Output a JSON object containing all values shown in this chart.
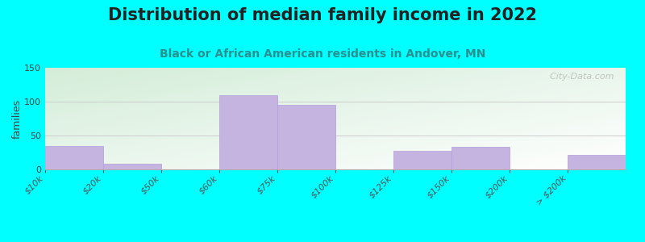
{
  "title": "Distribution of median family income in 2022",
  "subtitle": "Black or African American residents in Andover, MN",
  "ylabel": "families",
  "background_color": "#00FFFF",
  "bar_color": "#c5b3e0",
  "bar_edge_color": "#b39ddb",
  "categories": [
    "$10k",
    "$20k",
    "$50k",
    "$60k",
    "$75k",
    "$100k",
    "$125k",
    "$150k",
    "$200k",
    "> $200k"
  ],
  "values": [
    35,
    8,
    0,
    110,
    95,
    0,
    27,
    33,
    0,
    22
  ],
  "ylim": [
    0,
    150
  ],
  "yticks": [
    0,
    50,
    100,
    150
  ],
  "watermark": "  City-Data.com",
  "title_fontsize": 15,
  "subtitle_fontsize": 10,
  "ylabel_fontsize": 9,
  "tick_fontsize": 8,
  "subtitle_color": "#2a8f8f"
}
